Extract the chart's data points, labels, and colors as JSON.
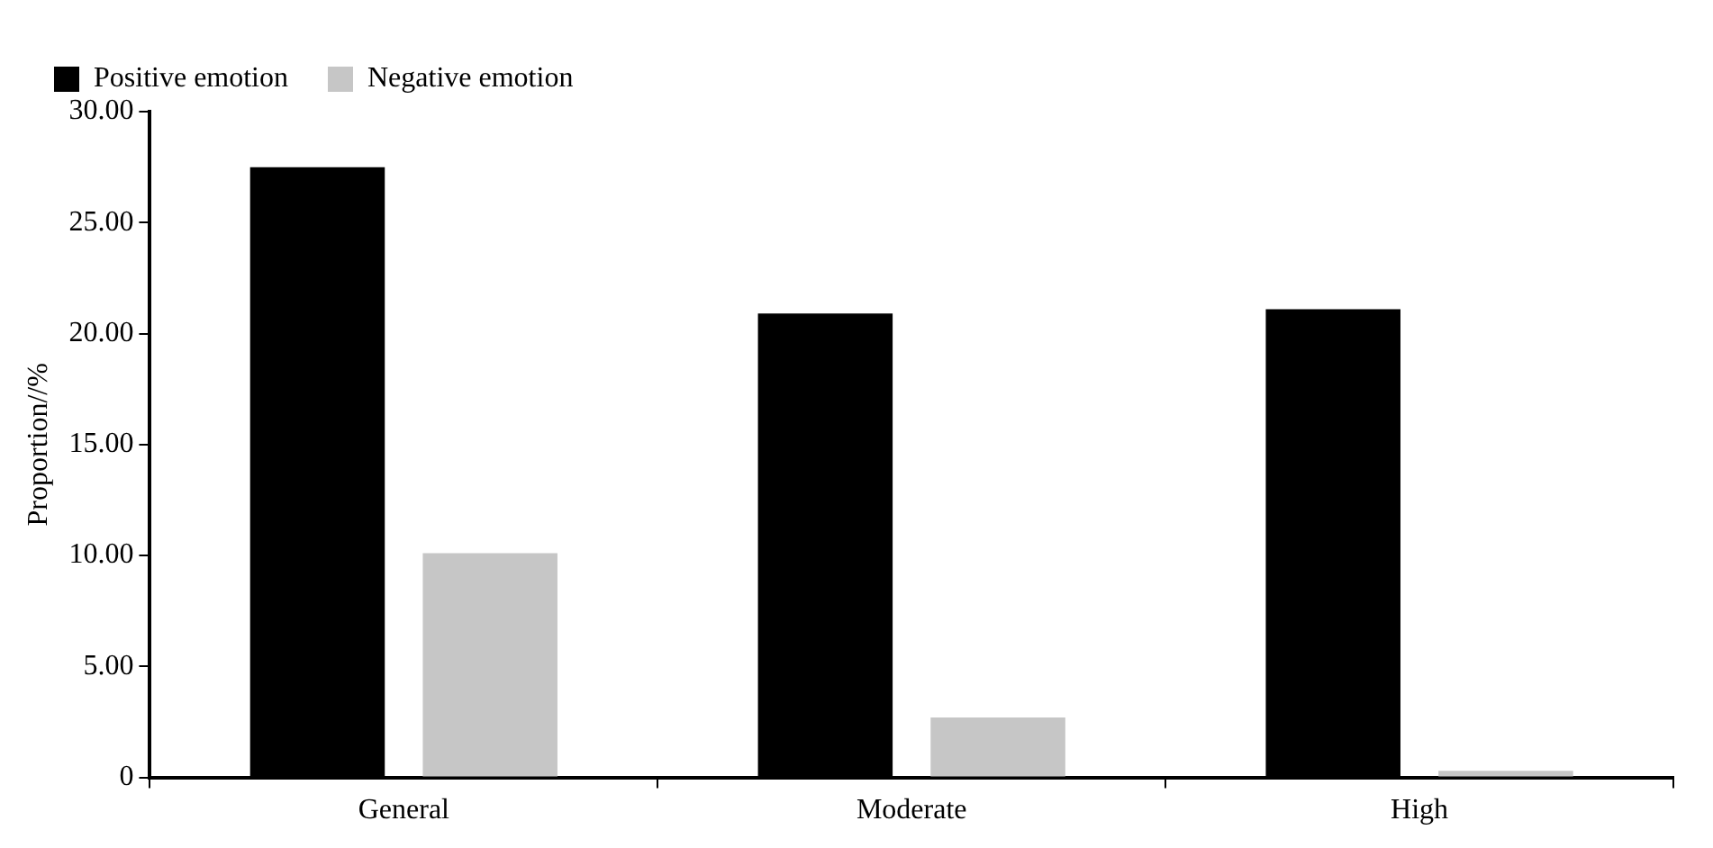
{
  "chart_data": {
    "type": "bar",
    "ylabel": "Proportion//%",
    "categories": [
      "General",
      "Moderate",
      "High"
    ],
    "series": [
      {
        "name": "Positive emotion",
        "color": "#000000",
        "values": [
          27.5,
          20.9,
          21.1
        ]
      },
      {
        "name": "Negative emotion",
        "color": "#c6c6c6",
        "values": [
          10.1,
          2.7,
          0.3
        ]
      }
    ],
    "ylim": [
      0,
      30
    ],
    "yticks": [
      {
        "value": 0,
        "label": "0"
      },
      {
        "value": 5,
        "label": "5.00"
      },
      {
        "value": 10,
        "label": "10.00"
      },
      {
        "value": 15,
        "label": "15.00"
      },
      {
        "value": 20,
        "label": "20.00"
      },
      {
        "value": 25,
        "label": "25.00"
      },
      {
        "value": 30,
        "label": "30.00"
      }
    ],
    "grid": false,
    "legend": "top left"
  }
}
